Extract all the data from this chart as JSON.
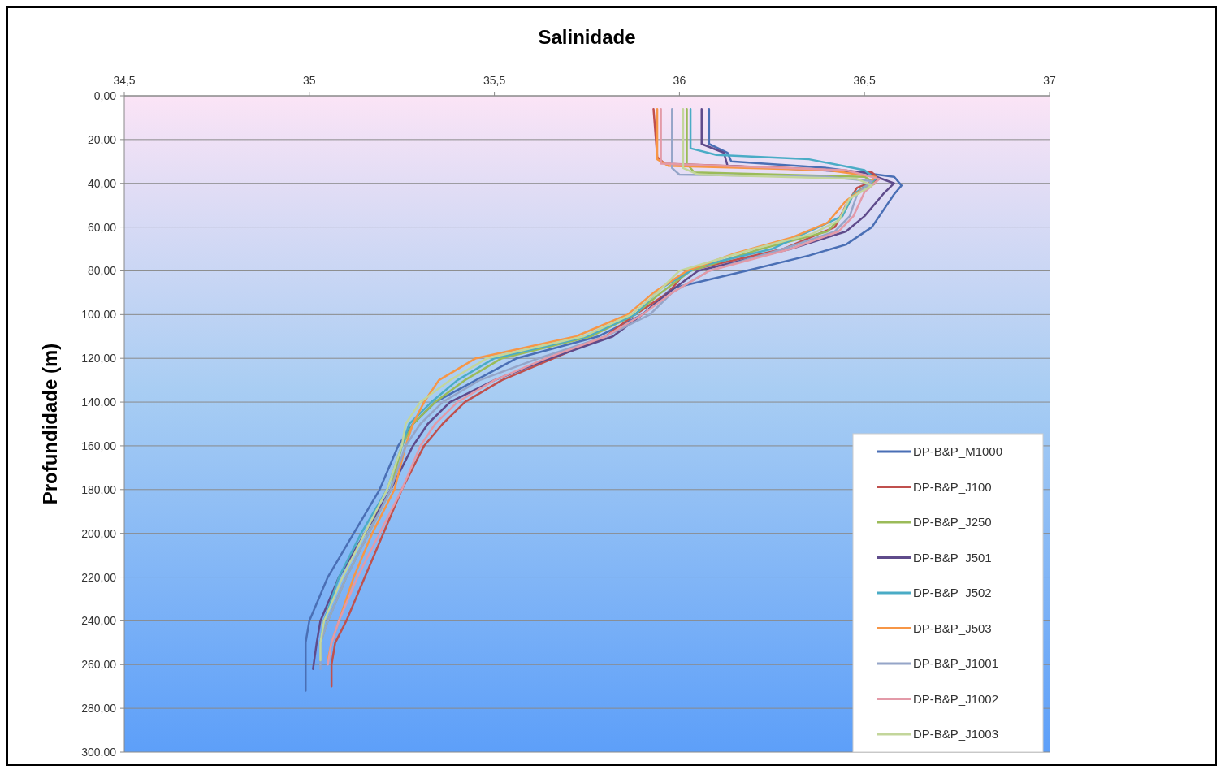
{
  "chart_data": {
    "type": "line",
    "title": "Salinidade",
    "ylabel": "Profundidade (m)",
    "xlim": [
      34.5,
      37
    ],
    "xticks": [
      {
        "value": 34.5,
        "label": "34,5"
      },
      35,
      {
        "value": 35.5,
        "label": "35,5"
      },
      36,
      {
        "value": 36.5,
        "label": "36,5"
      },
      37
    ],
    "ylim": [
      300,
      0
    ],
    "yticks": [
      {
        "value": 0,
        "label": "0,00"
      },
      {
        "value": 20,
        "label": "20,00"
      },
      {
        "value": 40,
        "label": "40,00"
      },
      {
        "value": 60,
        "label": "60,00"
      },
      {
        "value": 80,
        "label": "80,00"
      },
      {
        "value": 100,
        "label": "100,00"
      },
      {
        "value": 120,
        "label": "120,00"
      },
      {
        "value": 140,
        "label": "140,00"
      },
      {
        "value": 160,
        "label": "160,00"
      },
      {
        "value": 180,
        "label": "180,00"
      },
      {
        "value": 200,
        "label": "200,00"
      },
      {
        "value": 220,
        "label": "220,00"
      },
      {
        "value": 240,
        "label": "240,00"
      },
      {
        "value": 260,
        "label": "260,00"
      },
      {
        "value": 280,
        "label": "280,00"
      },
      {
        "value": 300,
        "label": "300,00"
      }
    ],
    "grid": "y",
    "legend": "bottom right",
    "marker": "none",
    "line_style": "solid",
    "series": [
      {
        "name": "DP-B&P_M1000",
        "color": "#4a6fb5",
        "x": [
          36.08,
          36.08,
          36.13,
          36.14,
          36.4,
          36.58,
          36.6,
          36.58,
          36.56,
          36.52,
          36.45,
          36.35,
          36.18,
          35.98,
          35.9,
          35.78,
          35.56,
          35.45,
          35.34,
          35.28,
          35.24,
          35.19,
          35.12,
          35.05,
          35.0,
          34.99,
          34.99
        ],
        "values": [
          6,
          22,
          26,
          30,
          33,
          37,
          41,
          45,
          50,
          60,
          68,
          73,
          80,
          88,
          100,
          110,
          120,
          130,
          140,
          150,
          160,
          180,
          200,
          220,
          240,
          250,
          272
        ]
      },
      {
        "name": "DP-B&P_J100",
        "color": "#c0504d",
        "x": [
          35.93,
          35.94,
          35.96,
          36.3,
          36.52,
          36.54,
          36.48,
          36.45,
          36.42,
          36.28,
          36.02,
          35.97,
          35.88,
          35.8,
          35.66,
          35.52,
          35.42,
          35.36,
          35.31,
          35.25,
          35.2,
          35.15,
          35.1,
          35.07,
          35.06,
          35.06
        ],
        "values": [
          6,
          28,
          31,
          33,
          35,
          38,
          42,
          50,
          60,
          70,
          80,
          90,
          100,
          110,
          120,
          130,
          140,
          150,
          160,
          180,
          200,
          220,
          240,
          250,
          260,
          270
        ]
      },
      {
        "name": "DP-B&P_J250",
        "color": "#9bbb59",
        "x": [
          36.02,
          36.02,
          36.04,
          36.5,
          36.53,
          36.47,
          36.44,
          36.4,
          36.22,
          36.03,
          35.95,
          35.88,
          35.76,
          35.52,
          35.42,
          35.34,
          35.28,
          35.25,
          35.22,
          35.16,
          35.1,
          35.05,
          35.03,
          35.03
        ],
        "values": [
          6,
          31,
          35,
          37,
          40,
          45,
          55,
          62,
          70,
          80,
          90,
          100,
          110,
          120,
          130,
          140,
          150,
          160,
          180,
          200,
          220,
          240,
          250,
          258
        ]
      },
      {
        "name": "DP-B&P_J501",
        "color": "#5f4b8b",
        "x": [
          36.06,
          36.06,
          36.12,
          36.13,
          36.5,
          36.58,
          36.55,
          36.5,
          36.45,
          36.3,
          36.05,
          35.97,
          35.9,
          35.82,
          35.65,
          35.5,
          35.38,
          35.32,
          35.28,
          35.22,
          35.15,
          35.08,
          35.03,
          35.02,
          35.01
        ],
        "values": [
          6,
          22,
          26,
          32,
          35,
          40,
          45,
          55,
          62,
          70,
          80,
          90,
          100,
          110,
          120,
          130,
          140,
          150,
          160,
          180,
          200,
          220,
          240,
          250,
          262
        ]
      },
      {
        "name": "DP-B&P_J502",
        "color": "#4aacc6",
        "x": [
          36.03,
          36.03,
          36.1,
          36.35,
          36.5,
          36.53,
          36.47,
          36.44,
          36.35,
          36.25,
          36.05,
          35.95,
          35.88,
          35.75,
          35.5,
          35.4,
          35.33,
          35.27,
          35.25,
          35.21,
          35.14,
          35.08,
          35.04,
          35.03,
          35.03
        ],
        "values": [
          6,
          24,
          27,
          29,
          34,
          38,
          45,
          55,
          62,
          70,
          78,
          88,
          100,
          110,
          120,
          130,
          140,
          150,
          160,
          180,
          200,
          220,
          240,
          250,
          256
        ]
      },
      {
        "name": "DP-B&P_J503",
        "color": "#f79646",
        "x": [
          35.94,
          35.94,
          35.97,
          36.4,
          36.53,
          36.5,
          36.45,
          36.4,
          36.3,
          36.15,
          36.02,
          35.93,
          35.86,
          35.72,
          35.45,
          35.35,
          35.31,
          35.28,
          35.26,
          35.23,
          35.17,
          35.12,
          35.08,
          35.06,
          35.05
        ],
        "values": [
          6,
          29,
          32,
          34,
          37,
          42,
          48,
          58,
          65,
          72,
          80,
          90,
          100,
          110,
          120,
          130,
          140,
          150,
          160,
          180,
          200,
          220,
          240,
          250,
          258
        ]
      },
      {
        "name": "DP-B&P_J1001",
        "color": "#95a5c8",
        "x": [
          35.98,
          35.98,
          36.0,
          36.4,
          36.52,
          36.48,
          36.46,
          36.42,
          36.28,
          36.08,
          35.98,
          35.92,
          35.8,
          35.62,
          35.46,
          35.36,
          35.3,
          35.26,
          35.22,
          35.16,
          35.1,
          35.05,
          35.03,
          35.03
        ],
        "values": [
          6,
          33,
          36,
          37,
          39,
          45,
          55,
          62,
          70,
          80,
          90,
          100,
          110,
          120,
          130,
          140,
          150,
          160,
          180,
          200,
          220,
          240,
          250,
          262
        ]
      },
      {
        "name": "DP-B&P_J1002",
        "color": "#e39aa8",
        "x": [
          35.95,
          35.95,
          36.45,
          36.54,
          36.5,
          36.47,
          36.43,
          36.3,
          36.08,
          35.98,
          35.9,
          35.8,
          35.64,
          35.5,
          35.4,
          35.34,
          35.3,
          35.25,
          35.19,
          35.13,
          35.08,
          35.06,
          35.05
        ],
        "values": [
          6,
          31,
          34,
          38,
          44,
          55,
          62,
          70,
          80,
          90,
          100,
          110,
          120,
          130,
          140,
          150,
          160,
          180,
          200,
          220,
          240,
          250,
          260
        ]
      },
      {
        "name": "DP-B&P_J1003",
        "color": "#c3d69b",
        "x": [
          36.01,
          36.01,
          36.05,
          36.48,
          36.52,
          36.46,
          36.43,
          36.36,
          36.2,
          36.0,
          35.94,
          35.87,
          35.74,
          35.48,
          35.38,
          35.3,
          35.26,
          35.25,
          35.21,
          35.15,
          35.09,
          35.04,
          35.03,
          35.03
        ],
        "values": [
          6,
          33,
          36,
          38,
          41,
          47,
          57,
          63,
          70,
          80,
          90,
          100,
          110,
          120,
          130,
          140,
          150,
          160,
          180,
          200,
          220,
          240,
          250,
          258
        ]
      }
    ]
  }
}
